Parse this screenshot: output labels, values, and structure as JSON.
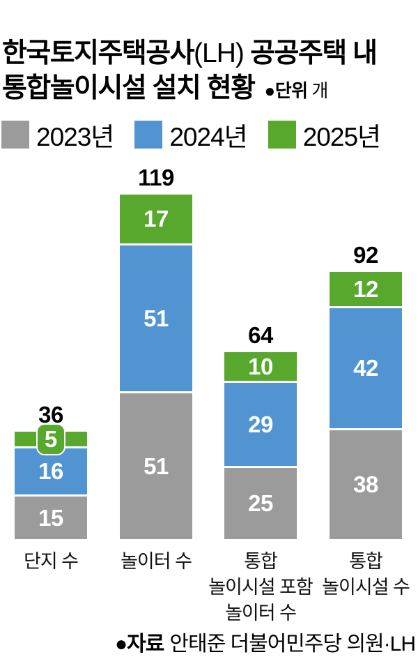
{
  "title": {
    "line1_bold_start": "한국토지주택공사",
    "line1_light": "(LH)",
    "line1_bold_end": " 공공주택 내",
    "line2_bold": "통합놀이시설 설치 현황",
    "unit_label": "●단위",
    "unit_value": "개"
  },
  "legend": {
    "items": [
      {
        "label": "2023년",
        "color": "#9b9b9b"
      },
      {
        "label": "2024년",
        "color": "#5294d2"
      },
      {
        "label": "2025년",
        "color": "#57a82c"
      }
    ]
  },
  "source": {
    "label": "●자료",
    "text": "안태준 더불어민주당 의원·LH"
  },
  "chart_data": {
    "type": "bar",
    "stacked": true,
    "orientation": "vertical",
    "unit": "개",
    "title": "한국토지주택공사(LH) 공공주택 내 통합놀이시설 설치 현황",
    "categories": [
      "단지 수",
      "놀이터 수",
      "통합\n놀이시설 포함\n놀이터 수",
      "통합\n놀이시설 수"
    ],
    "series": [
      {
        "name": "2023년",
        "color": "#9b9b9b",
        "values": [
          15,
          51,
          25,
          38
        ]
      },
      {
        "name": "2024년",
        "color": "#5294d2",
        "values": [
          16,
          51,
          29,
          42
        ]
      },
      {
        "name": "2025년",
        "color": "#57a82c",
        "values": [
          5,
          17,
          10,
          12
        ]
      }
    ],
    "totals": [
      36,
      119,
      64,
      92
    ],
    "value_labels": true,
    "legend_position": "top",
    "axes": "none",
    "source": "안태준 더불어민주당 의원·LH"
  }
}
